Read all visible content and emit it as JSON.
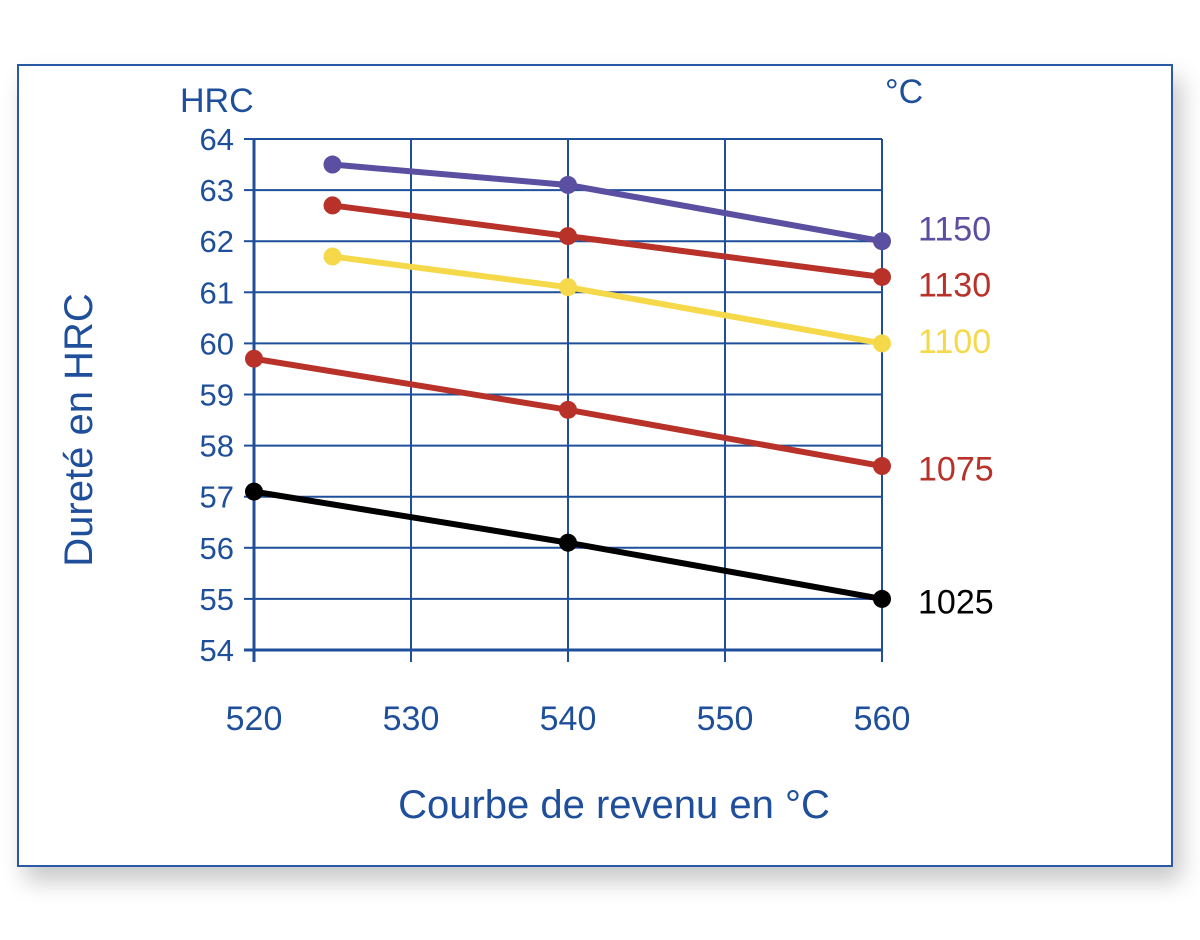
{
  "chart_data": {
    "type": "line",
    "title": "",
    "xlabel": "Courbe de revenu en °C",
    "ylabel": "Dureté en HRC",
    "y_unit": "HRC",
    "series_unit": "°C",
    "xlim": [
      520,
      560
    ],
    "ylim": [
      54,
      64
    ],
    "x_ticks": [
      520,
      530,
      540,
      550,
      560
    ],
    "y_ticks": [
      54,
      55,
      56,
      57,
      58,
      59,
      60,
      61,
      62,
      63,
      64
    ],
    "grid": true,
    "axis_color": "#1f4f9a",
    "series": [
      {
        "name": "1150",
        "color": "#5a4fa0",
        "x": [
          525,
          540,
          560
        ],
        "y": [
          63.5,
          63.1,
          62.0
        ]
      },
      {
        "name": "1130",
        "color": "#b8322a",
        "x": [
          525,
          540,
          560
        ],
        "y": [
          62.7,
          62.1,
          61.3
        ]
      },
      {
        "name": "1100",
        "color": "#f5d94a",
        "x": [
          525,
          540,
          560
        ],
        "y": [
          61.7,
          61.1,
          60.0
        ]
      },
      {
        "name": "1075",
        "color": "#b8322a",
        "x": [
          520,
          540,
          560
        ],
        "y": [
          59.7,
          58.7,
          57.6
        ]
      },
      {
        "name": "1025",
        "color": "#000000",
        "x": [
          520,
          540,
          560
        ],
        "y": [
          57.1,
          56.1,
          55.0
        ]
      }
    ],
    "label_positions": [
      62.25,
      61.15,
      60.05,
      57.55,
      54.95
    ]
  }
}
